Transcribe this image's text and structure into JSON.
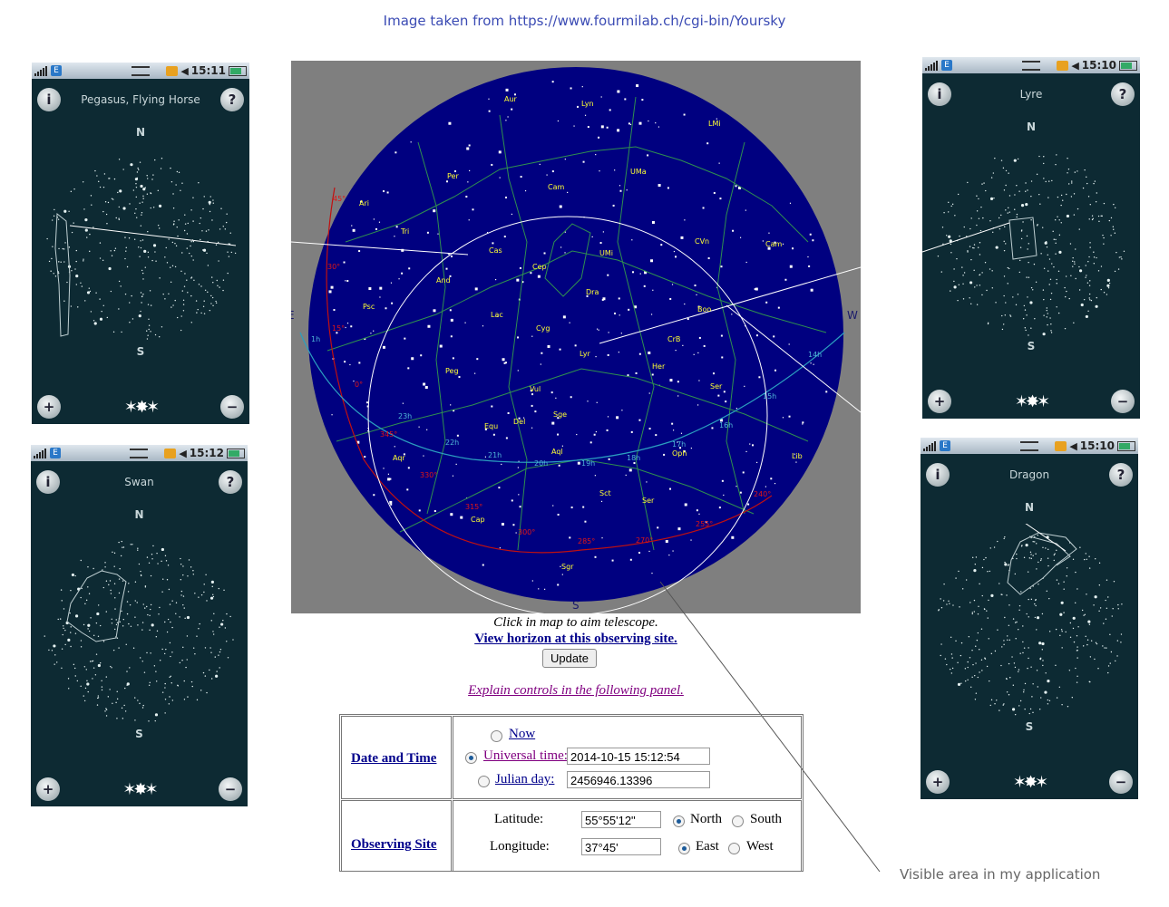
{
  "caption": "Image taken from https://www.fourmilab.ch/cgi-bin/Yoursky",
  "bottom_note": "Visible area in my application",
  "sky_map": {
    "compass": {
      "north": "N",
      "south": "S",
      "east": "E",
      "west": "W"
    },
    "constellation_labels": [
      "Aur",
      "Lyn",
      "LMi",
      "Per",
      "UMa",
      "Cam",
      "Ari",
      "Tri",
      "Cas",
      "CVn",
      "Cam",
      "Cep",
      "UMi",
      "And",
      "Dra",
      "Psc",
      "Lac",
      "Boo",
      "Cyg",
      "Lyr",
      "CrB",
      "Peg",
      "Her",
      "Ser",
      "Vul",
      "Sge",
      "Equ",
      "Del",
      "Aql",
      "Oph",
      "Aqr",
      "Sct",
      "Ser",
      "Cap",
      "Lib",
      "Sgr"
    ],
    "ra_labels": [
      "1h",
      "23h",
      "22h",
      "21h",
      "20h",
      "19h",
      "18h",
      "17h",
      "16h",
      "15h",
      "14h"
    ],
    "ecliptic_labels": [
      "45°",
      "30°",
      "15°",
      "0°",
      "345°",
      "330°",
      "315°",
      "300°",
      "285°",
      "270°",
      "255°",
      "240°"
    ]
  },
  "phones": [
    {
      "time": "15:11",
      "title": "Pegasus, Flying Horse",
      "north": "N",
      "south": "S",
      "info_icon": "i",
      "help_icon": "?"
    },
    {
      "time": "15:12",
      "title": "Swan",
      "north": "N",
      "south": "S",
      "info_icon": "i",
      "help_icon": "?"
    },
    {
      "time": "15:10",
      "title": "Lyre",
      "north": "N",
      "south": "S",
      "info_icon": "i",
      "help_icon": "?"
    },
    {
      "time": "15:10",
      "title": "Dragon",
      "north": "N",
      "south": "S",
      "info_icon": "i",
      "help_icon": "?"
    }
  ],
  "status_e": "E",
  "form": {
    "click_msg": "Click in map to aim telescope.",
    "horizon_link": "View horizon at this observing site.",
    "update_label": "Update",
    "explain_link": "Explain controls in the following panel.",
    "date_time": {
      "header": "Date and Time",
      "now_label": "Now",
      "ut_label": "Universal time:",
      "ut_value": "2014-10-15 15:12:54",
      "jd_label": "Julian day:",
      "jd_value": "2456946.13396",
      "selected": "Universal time:"
    },
    "site": {
      "header": "Observing Site",
      "lat_label": "Latitude:",
      "lat_value": "55°55'12\"",
      "lat_north": "North",
      "lat_south": "South",
      "lat_selected": "North",
      "lon_label": "Longitude:",
      "lon_value": "37°45'",
      "lon_east": "East",
      "lon_west": "West",
      "lon_selected": "East"
    }
  }
}
